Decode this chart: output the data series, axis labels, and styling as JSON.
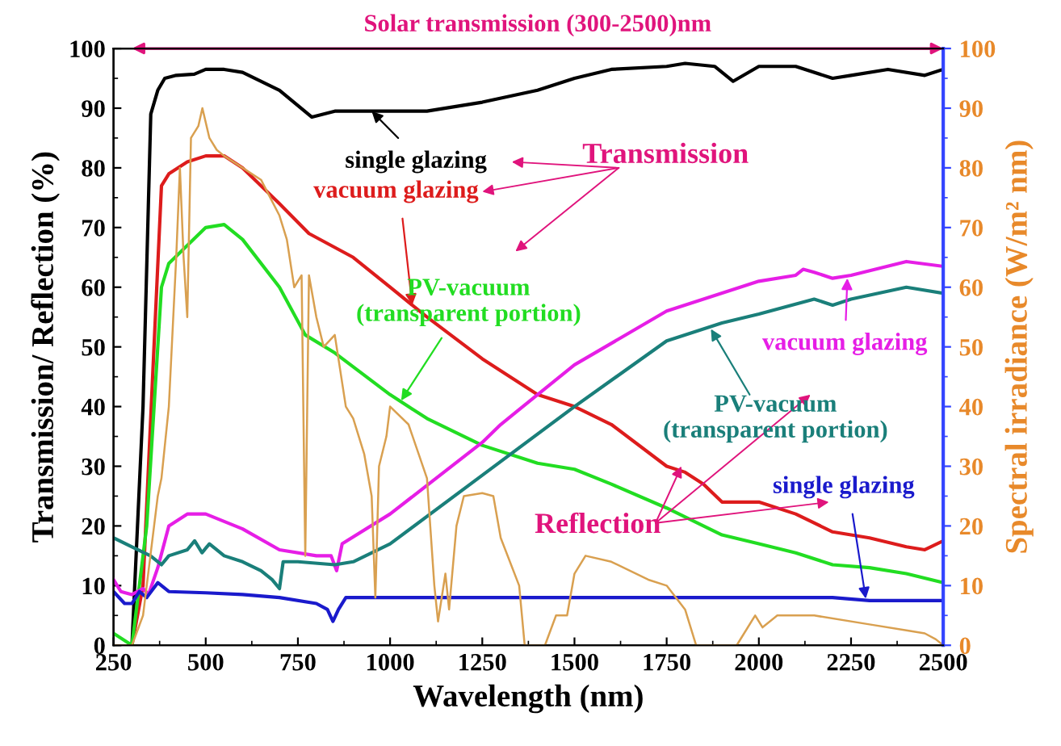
{
  "chart_data": {
    "type": "line",
    "xlabel": "Wavelength (nm)",
    "ylabel": "Transmission/ Reflection (%)",
    "y2label": "Spectral irradiance (W/m² nm)",
    "xlim": [
      250,
      2500
    ],
    "xticks": [
      250,
      500,
      750,
      1000,
      1250,
      1500,
      1750,
      2000,
      2250,
      2500
    ],
    "ylim": [
      0,
      100
    ],
    "yticks": [
      0,
      10,
      20,
      30,
      40,
      50,
      60,
      70,
      80,
      90,
      100
    ],
    "y2lim": [
      0,
      100
    ],
    "y2ticks": [
      0,
      10,
      20,
      30,
      40,
      50,
      60,
      70,
      80,
      90,
      100
    ],
    "grid": false,
    "legend": "top",
    "marker": "none",
    "line_style": "solid",
    "series": [
      {
        "name": "single glazing",
        "color": "#000000",
        "x": [
          300,
          330,
          351,
          370,
          389,
          420,
          469,
          500,
          550,
          600,
          700,
          788,
          850,
          900,
          1000,
          1100,
          1250,
          1400,
          1500,
          1600,
          1750,
          1800,
          1880,
          1930,
          2000,
          2100,
          2200,
          2250,
          2350,
          2450,
          2500
        ],
        "values": [
          0,
          40,
          89,
          93,
          95,
          95.5,
          95.7,
          96.5,
          96.5,
          96,
          93,
          88.5,
          89.5,
          89.5,
          89.5,
          89.5,
          91,
          93,
          95,
          96.5,
          97,
          97.5,
          97,
          94.5,
          97,
          97,
          95,
          95.5,
          96.5,
          95.5,
          96.5
        ]
      },
      {
        "name": "vacuum glazing",
        "color": "#dd1c1c",
        "x": [
          300,
          330,
          359,
          380,
          400,
          450,
          500,
          550,
          600,
          700,
          780,
          900,
          1000,
          1100,
          1250,
          1400,
          1500,
          1600,
          1750,
          1800,
          1850,
          1900,
          2000,
          2100,
          2200,
          2300,
          2400,
          2450,
          2500
        ],
        "values": [
          0,
          10,
          49,
          77,
          79,
          81,
          82,
          82,
          80,
          74,
          69,
          65,
          60,
          55,
          48,
          42,
          40,
          37,
          30,
          29,
          27,
          24,
          24,
          22,
          19,
          18,
          16.5,
          16,
          17.5
        ]
      },
      {
        "name": "PV-vacuum\n(transparent portion)",
        "color": "#22dd22",
        "x": [
          250,
          300,
          340,
          380,
          400,
          450,
          500,
          550,
          600,
          700,
          770,
          850,
          1000,
          1100,
          1250,
          1400,
          1500,
          1600,
          1750,
          1900,
          2000,
          2100,
          2200,
          2300,
          2400,
          2500
        ],
        "values": [
          2,
          0,
          20,
          60,
          64,
          67,
          70,
          70.5,
          68,
          60,
          52,
          49,
          42,
          38,
          33.5,
          30.5,
          29.5,
          27,
          23,
          18.5,
          17,
          15.5,
          13.5,
          13,
          12,
          10.5
        ]
      },
      {
        "name": "vacuum glazing",
        "color": "#e61ee6",
        "x": [
          250,
          270,
          300,
          330,
          345,
          370,
          400,
          450,
          500,
          600,
          700,
          800,
          840,
          855,
          870,
          1000,
          1250,
          1300,
          1500,
          1750,
          2000,
          2100,
          2120,
          2150,
          2200,
          2250,
          2400,
          2500
        ],
        "values": [
          11,
          9,
          8.5,
          9.5,
          8.5,
          13,
          20,
          22,
          22,
          19.5,
          16,
          15,
          15,
          12.5,
          17,
          22,
          34,
          37,
          47,
          56,
          61,
          62,
          63,
          62.5,
          61.5,
          62,
          64.3,
          63.5
        ]
      },
      {
        "name": "PV-vacuum\n(transparent portion)",
        "color": "#1a7f7a",
        "x": [
          250,
          300,
          350,
          380,
          400,
          450,
          470,
          490,
          510,
          550,
          600,
          650,
          680,
          700,
          710,
          750,
          850,
          900,
          1000,
          1250,
          1500,
          1750,
          1900,
          2000,
          2150,
          2200,
          2250,
          2400,
          2500
        ],
        "values": [
          18,
          16.5,
          15,
          13.5,
          15,
          16,
          17.5,
          15.5,
          17,
          15,
          14,
          12.5,
          11,
          9.5,
          14,
          14,
          13.5,
          14,
          17,
          28.5,
          40,
          51,
          54,
          55.5,
          58,
          57,
          58,
          60,
          59
        ]
      },
      {
        "name": "single glazing",
        "color": "#1a1acc",
        "x": [
          250,
          280,
          300,
          320,
          340,
          370,
          400,
          500,
          600,
          700,
          800,
          830,
          845,
          860,
          880,
          1000,
          1500,
          1800,
          2000,
          2200,
          2300,
          2500
        ],
        "values": [
          9,
          7,
          7,
          9,
          8,
          10.5,
          9,
          8.8,
          8.5,
          8,
          7,
          6,
          4,
          6,
          8,
          8,
          8,
          8,
          8,
          8,
          7.5,
          7.5
        ]
      },
      {
        "axis": "y2",
        "color": "#d9a050",
        "x": [
          250,
          300,
          330,
          350,
          370,
          380,
          400,
          420,
          430,
          440,
          450,
          460,
          480,
          491,
          510,
          530,
          550,
          600,
          650,
          700,
          720,
          740,
          760,
          770,
          780,
          800,
          820,
          850,
          880,
          900,
          930,
          950,
          960,
          970,
          990,
          1000,
          1050,
          1100,
          1120,
          1130,
          1150,
          1160,
          1180,
          1200,
          1250,
          1280,
          1300,
          1350,
          1365,
          1420,
          1450,
          1480,
          1500,
          1530,
          1600,
          1700,
          1750,
          1800,
          1830,
          1940,
          1990,
          2010,
          2050,
          2150,
          2300,
          2400,
          2450,
          2480,
          2500
        ],
        "values": [
          0,
          0,
          5,
          15,
          25,
          28,
          40,
          65,
          80,
          65,
          55,
          85,
          87,
          90,
          85,
          83,
          82,
          80,
          78,
          72,
          68,
          60,
          62,
          15,
          62,
          55,
          50,
          52,
          40,
          38,
          32,
          25,
          8,
          30,
          35,
          40,
          37,
          28,
          10,
          4,
          12,
          6,
          20,
          25,
          25.5,
          25,
          18,
          10,
          0,
          0,
          5,
          5,
          12,
          15,
          14,
          11,
          10,
          6,
          0,
          0,
          5,
          3,
          5,
          5,
          3.5,
          2.5,
          2,
          1,
          0
        ]
      }
    ],
    "annotations": [
      "Transmission",
      "Reflection",
      "Solar transmission (300-2500)nm"
    ]
  }
}
